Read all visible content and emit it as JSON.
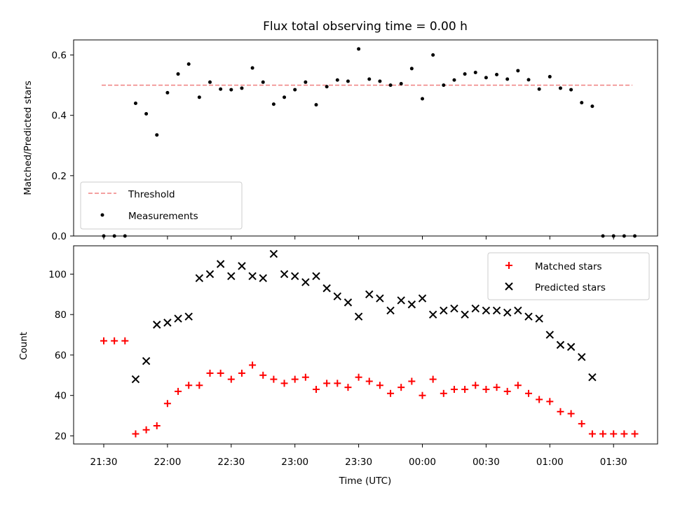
{
  "chart_data": [
    {
      "type": "scatter",
      "title": "Flux total observing time = 0.00 h",
      "xlabel": "",
      "ylabel": "Matched/Predicted stars",
      "ylim": [
        0,
        0.65
      ],
      "yticks": [
        "0.0",
        "0.2",
        "0.4",
        "0.6"
      ],
      "legend_position": "lower left",
      "threshold": {
        "name": "Threshold",
        "value": 0.5,
        "color": "#f08080",
        "style": "dashed"
      },
      "series": [
        {
          "name": "Measurements",
          "color": "#000000",
          "marker": "dot",
          "x": [
            "21:30",
            "21:35",
            "21:40",
            "21:45",
            "21:50",
            "21:55",
            "22:00",
            "22:05",
            "22:10",
            "22:15",
            "22:20",
            "22:25",
            "22:30",
            "22:35",
            "22:40",
            "22:45",
            "22:50",
            "22:55",
            "23:00",
            "23:05",
            "23:10",
            "23:15",
            "23:20",
            "23:25",
            "23:30",
            "23:35",
            "23:40",
            "23:45",
            "23:50",
            "23:55",
            "00:00",
            "00:05",
            "00:10",
            "00:15",
            "00:20",
            "00:25",
            "00:30",
            "00:35",
            "00:40",
            "00:45",
            "00:50",
            "00:55",
            "01:00",
            "01:05",
            "01:10",
            "01:15",
            "01:20",
            "01:25",
            "01:30",
            "01:35",
            "01:40"
          ],
          "y": [
            0.0,
            0.0,
            0.0,
            0.44,
            0.405,
            0.335,
            0.475,
            0.537,
            0.57,
            0.46,
            0.51,
            0.487,
            0.485,
            0.49,
            0.557,
            0.51,
            0.437,
            0.46,
            0.485,
            0.51,
            0.435,
            0.495,
            0.517,
            0.513,
            0.62,
            0.52,
            0.513,
            0.5,
            0.505,
            0.555,
            0.455,
            0.6,
            0.5,
            0.517,
            0.537,
            0.542,
            0.525,
            0.535,
            0.52,
            0.548,
            0.518,
            0.487,
            0.528,
            0.49,
            0.485,
            0.442,
            0.43,
            0.0,
            0.0,
            0.0,
            0.0
          ]
        }
      ]
    },
    {
      "type": "scatter",
      "title": "",
      "xlabel": "Time (UTC)",
      "ylabel": "Count",
      "ylim": [
        16,
        114
      ],
      "yticks": [
        "20",
        "40",
        "60",
        "80",
        "100"
      ],
      "xticks": [
        "21:30",
        "22:00",
        "22:30",
        "23:00",
        "23:30",
        "00:00",
        "00:30",
        "01:00",
        "01:30"
      ],
      "legend_position": "upper right",
      "series": [
        {
          "name": "Matched stars",
          "color": "#ff0000",
          "marker": "plus",
          "x": [
            "21:30",
            "21:35",
            "21:40",
            "21:45",
            "21:50",
            "21:55",
            "22:00",
            "22:05",
            "22:10",
            "22:15",
            "22:20",
            "22:25",
            "22:30",
            "22:35",
            "22:40",
            "22:45",
            "22:50",
            "22:55",
            "23:00",
            "23:05",
            "23:10",
            "23:15",
            "23:20",
            "23:25",
            "23:30",
            "23:35",
            "23:40",
            "23:45",
            "23:50",
            "23:55",
            "00:00",
            "00:05",
            "00:10",
            "00:15",
            "00:20",
            "00:25",
            "00:30",
            "00:35",
            "00:40",
            "00:45",
            "00:50",
            "00:55",
            "01:00",
            "01:05",
            "01:10",
            "01:15",
            "01:20",
            "01:25",
            "01:30",
            "01:35",
            "01:40"
          ],
          "y": [
            67,
            67,
            67,
            21,
            23,
            25,
            36,
            42,
            45,
            45,
            51,
            51,
            48,
            51,
            55,
            50,
            48,
            46,
            48,
            49,
            43,
            46,
            46,
            44,
            49,
            47,
            45,
            41,
            44,
            47,
            40,
            48,
            41,
            43,
            43,
            45,
            43,
            44,
            42,
            45,
            41,
            38,
            37,
            32,
            31,
            26,
            21,
            21,
            21,
            21,
            21
          ]
        },
        {
          "name": "Predicted stars",
          "color": "#000000",
          "marker": "x",
          "x": [
            "21:45",
            "21:50",
            "21:55",
            "22:00",
            "22:05",
            "22:10",
            "22:15",
            "22:20",
            "22:25",
            "22:30",
            "22:35",
            "22:40",
            "22:45",
            "22:50",
            "22:55",
            "23:00",
            "23:05",
            "23:10",
            "23:15",
            "23:20",
            "23:25",
            "23:30",
            "23:35",
            "23:40",
            "23:45",
            "23:50",
            "23:55",
            "00:00",
            "00:05",
            "00:10",
            "00:15",
            "00:20",
            "00:25",
            "00:30",
            "00:35",
            "00:40",
            "00:45",
            "00:50",
            "00:55",
            "01:00",
            "01:05",
            "01:10",
            "01:15",
            "01:20"
          ],
          "y": [
            48,
            57,
            75,
            76,
            78,
            79,
            98,
            100,
            105,
            99,
            104,
            99,
            98,
            110,
            100,
            99,
            96,
            99,
            93,
            89,
            86,
            79,
            90,
            88,
            82,
            87,
            85,
            88,
            80,
            82,
            83,
            80,
            83,
            82,
            82,
            81,
            82,
            79,
            78,
            70,
            65,
            64,
            59,
            49
          ]
        }
      ]
    }
  ]
}
